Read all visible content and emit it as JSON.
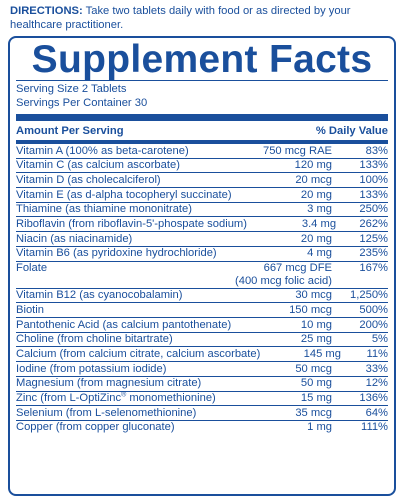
{
  "directions": {
    "label": "DIRECTIONS:",
    "text": " Take two tablets daily with food or as directed by your healthcare practitioner."
  },
  "panel": {
    "title": "Supplement Facts",
    "serving_size": "Serving Size 2 Tablets",
    "servings_per_container": "Servings Per Container 30",
    "header_amount": "Amount Per Serving",
    "header_dv": "% Daily Value"
  },
  "nutrients": [
    {
      "name": "Vitamin A (100% as beta-carotene)",
      "amount": "750 mcg RAE",
      "dv": "83%"
    },
    {
      "name": "Vitamin C (as calcium ascorbate)",
      "amount": "120 mg",
      "dv": "133%"
    },
    {
      "name": "Vitamin D (as cholecalciferol)",
      "amount": "20 mcg",
      "dv": "100%"
    },
    {
      "name": "Vitamin E (as d-alpha tocopheryl succinate)",
      "amount": "20 mg",
      "dv": "133%"
    },
    {
      "name": "Thiamine (as thiamine mononitrate)",
      "amount": "3 mg",
      "dv": "250%"
    },
    {
      "name": "Riboflavin (from riboflavin-5'-phospate sodium)",
      "amount": "3.4 mg",
      "dv": "262%"
    },
    {
      "name": "Niacin (as niacinamide)",
      "amount": "20 mg",
      "dv": "125%"
    },
    {
      "name": "Vitamin B6 (as pyridoxine hydrochloride)",
      "amount": "4 mg",
      "dv": "235%"
    },
    {
      "name": "Folate",
      "amount": "667 mcg DFE",
      "amount_line2": "(400 mcg folic acid)",
      "dv": "167%"
    },
    {
      "name": "Vitamin B12 (as cyanocobalamin)",
      "amount": "30 mcg",
      "dv": "1,250%"
    },
    {
      "name": "Biotin",
      "amount": "150 mcg",
      "dv": "500%"
    },
    {
      "name": "Pantothenic Acid (as calcium pantothenate)",
      "amount": "10 mg",
      "dv": "200%"
    },
    {
      "name": "Choline (from choline bitartrate)",
      "amount": "25 mg",
      "dv": "5%"
    },
    {
      "name": "Calcium (from calcium citrate, calcium ascorbate)",
      "amount": "145 mg",
      "dv": "11%"
    },
    {
      "name": "Iodine (from potassium iodide)",
      "amount": "50 mcg",
      "dv": "33%"
    },
    {
      "name": "Magnesium (from magnesium citrate)",
      "amount": "50 mg",
      "dv": "12%"
    },
    {
      "name": "Zinc (from L-OptiZinc",
      "name_sup": "®",
      "name_tail": " monomethionine)",
      "amount": "15 mg",
      "dv": "136%"
    },
    {
      "name": "Selenium (from L-selenomethionine)",
      "amount": "35 mcg",
      "dv": "64%"
    },
    {
      "name": "Copper (from copper gluconate)",
      "amount": "1 mg",
      "dv": "111%"
    }
  ],
  "colors": {
    "ink": "#1a4f9c",
    "background": "#ffffff"
  }
}
